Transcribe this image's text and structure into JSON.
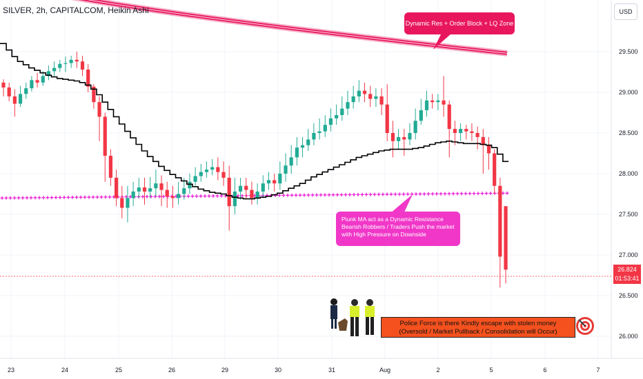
{
  "header": {
    "title": "SILVER, 2h, CAPITALCOM, Heikin Ashi",
    "currency": "USD"
  },
  "price_axis": {
    "ticks": [
      "29.500",
      "29.000",
      "28.500",
      "28.000",
      "27.500",
      "27.000",
      "26.500",
      "26.000"
    ],
    "current_price": "26.824",
    "countdown": "01:53:41"
  },
  "time_axis": {
    "ticks": [
      "23",
      "24",
      "25",
      "26",
      "29",
      "30",
      "31",
      "Aug",
      "2",
      "5",
      "6",
      "7"
    ]
  },
  "annotations": {
    "top": "Dynamic Res + Order Block + LQ Zone",
    "mid": [
      "Piunk MA act as a Dynamic Resistance",
      "Bearish Robbers / Traders Push the market",
      "with High Pressure on Downside"
    ],
    "bottom": [
      "Police Force is there Kindly escape with stolen money",
      "(Oversold / Market Pullback / Consolidation will Occur)"
    ]
  },
  "colors": {
    "up": "#22ab94",
    "down": "#f23645",
    "ma": "#000000",
    "pink_ma": "#e91ed4",
    "band": "#e91e63"
  },
  "chart_data": {
    "type": "candlestick",
    "title": "SILVER, 2h, CAPITALCOM, Heikin Ashi",
    "ylim": [
      25.7,
      29.95
    ],
    "candles": [
      {
        "o": 29.12,
        "c": 29.06,
        "h": 29.16,
        "l": 28.95
      },
      {
        "o": 29.06,
        "c": 28.95,
        "h": 29.12,
        "l": 28.89
      },
      {
        "o": 28.95,
        "c": 28.86,
        "h": 29.04,
        "l": 28.7
      },
      {
        "o": 28.86,
        "c": 28.98,
        "h": 29.08,
        "l": 28.82
      },
      {
        "o": 28.98,
        "c": 29.05,
        "h": 29.12,
        "l": 28.92
      },
      {
        "o": 29.05,
        "c": 29.15,
        "h": 29.2,
        "l": 29.01
      },
      {
        "o": 29.15,
        "c": 29.12,
        "h": 29.24,
        "l": 29.06
      },
      {
        "o": 29.12,
        "c": 29.2,
        "h": 29.26,
        "l": 29.08
      },
      {
        "o": 29.2,
        "c": 29.26,
        "h": 29.33,
        "l": 29.15
      },
      {
        "o": 29.26,
        "c": 29.3,
        "h": 29.38,
        "l": 29.2
      },
      {
        "o": 29.3,
        "c": 29.35,
        "h": 29.4,
        "l": 29.25
      },
      {
        "o": 29.35,
        "c": 29.36,
        "h": 29.44,
        "l": 29.25
      },
      {
        "o": 29.36,
        "c": 29.4,
        "h": 29.45,
        "l": 29.3
      },
      {
        "o": 29.4,
        "c": 29.38,
        "h": 29.5,
        "l": 29.3
      },
      {
        "o": 29.38,
        "c": 29.28,
        "h": 29.45,
        "l": 29.2
      },
      {
        "o": 29.28,
        "c": 29.07,
        "h": 29.35,
        "l": 29.0
      },
      {
        "o": 29.07,
        "c": 28.88,
        "h": 29.1,
        "l": 28.8
      },
      {
        "o": 28.88,
        "c": 28.7,
        "h": 28.95,
        "l": 28.4
      },
      {
        "o": 28.7,
        "c": 28.22,
        "h": 28.75,
        "l": 27.9
      },
      {
        "o": 28.22,
        "c": 27.95,
        "h": 28.3,
        "l": 27.85
      },
      {
        "o": 27.95,
        "c": 27.7,
        "h": 28.05,
        "l": 27.6
      },
      {
        "o": 27.7,
        "c": 27.58,
        "h": 27.85,
        "l": 27.45
      },
      {
        "o": 27.58,
        "c": 27.7,
        "h": 27.85,
        "l": 27.4
      },
      {
        "o": 27.7,
        "c": 27.78,
        "h": 27.9,
        "l": 27.6
      },
      {
        "o": 27.78,
        "c": 27.83,
        "h": 27.95,
        "l": 27.7
      },
      {
        "o": 27.83,
        "c": 27.78,
        "h": 27.95,
        "l": 27.62
      },
      {
        "o": 27.78,
        "c": 27.82,
        "h": 27.96,
        "l": 27.7
      },
      {
        "o": 27.82,
        "c": 27.88,
        "h": 28.05,
        "l": 27.72
      },
      {
        "o": 27.88,
        "c": 27.8,
        "h": 27.98,
        "l": 27.6
      },
      {
        "o": 27.8,
        "c": 27.72,
        "h": 27.9,
        "l": 27.58
      },
      {
        "o": 27.72,
        "c": 27.7,
        "h": 27.85,
        "l": 27.58
      },
      {
        "o": 27.7,
        "c": 27.75,
        "h": 27.9,
        "l": 27.62
      },
      {
        "o": 27.75,
        "c": 27.82,
        "h": 27.95,
        "l": 27.68
      },
      {
        "o": 27.82,
        "c": 27.9,
        "h": 28.0,
        "l": 27.75
      },
      {
        "o": 27.9,
        "c": 27.97,
        "h": 28.08,
        "l": 27.85
      },
      {
        "o": 27.97,
        "c": 28.02,
        "h": 28.12,
        "l": 27.9
      },
      {
        "o": 28.02,
        "c": 28.05,
        "h": 28.15,
        "l": 27.95
      },
      {
        "o": 28.05,
        "c": 28.08,
        "h": 28.18,
        "l": 27.98
      },
      {
        "o": 28.08,
        "c": 28.02,
        "h": 28.2,
        "l": 27.92
      },
      {
        "o": 28.02,
        "c": 27.95,
        "h": 28.15,
        "l": 27.85
      },
      {
        "o": 27.95,
        "c": 27.6,
        "h": 28.1,
        "l": 27.3
      },
      {
        "o": 27.6,
        "c": 27.78,
        "h": 27.95,
        "l": 27.5
      },
      {
        "o": 27.78,
        "c": 27.85,
        "h": 27.95,
        "l": 27.68
      },
      {
        "o": 27.85,
        "c": 27.8,
        "h": 27.95,
        "l": 27.7
      },
      {
        "o": 27.8,
        "c": 27.7,
        "h": 27.9,
        "l": 27.62
      },
      {
        "o": 27.7,
        "c": 27.78,
        "h": 27.88,
        "l": 27.62
      },
      {
        "o": 27.78,
        "c": 27.88,
        "h": 27.98,
        "l": 27.7
      },
      {
        "o": 27.88,
        "c": 27.92,
        "h": 28.02,
        "l": 27.8
      },
      {
        "o": 27.92,
        "c": 27.88,
        "h": 28.0,
        "l": 27.78
      },
      {
        "o": 27.88,
        "c": 28.0,
        "h": 28.15,
        "l": 27.8
      },
      {
        "o": 28.0,
        "c": 28.1,
        "h": 28.25,
        "l": 27.9
      },
      {
        "o": 28.1,
        "c": 28.2,
        "h": 28.35,
        "l": 28.0
      },
      {
        "o": 28.2,
        "c": 28.32,
        "h": 28.45,
        "l": 28.1
      },
      {
        "o": 28.32,
        "c": 28.35,
        "h": 28.45,
        "l": 28.2
      },
      {
        "o": 28.35,
        "c": 28.42,
        "h": 28.55,
        "l": 28.28
      },
      {
        "o": 28.42,
        "c": 28.5,
        "h": 28.62,
        "l": 28.35
      },
      {
        "o": 28.5,
        "c": 28.52,
        "h": 28.68,
        "l": 28.42
      },
      {
        "o": 28.52,
        "c": 28.6,
        "h": 28.72,
        "l": 28.45
      },
      {
        "o": 28.6,
        "c": 28.68,
        "h": 28.8,
        "l": 28.52
      },
      {
        "o": 28.68,
        "c": 28.72,
        "h": 28.85,
        "l": 28.6
      },
      {
        "o": 28.72,
        "c": 28.8,
        "h": 28.95,
        "l": 28.65
      },
      {
        "o": 28.8,
        "c": 28.88,
        "h": 29.02,
        "l": 28.72
      },
      {
        "o": 28.88,
        "c": 28.95,
        "h": 29.08,
        "l": 28.8
      },
      {
        "o": 28.95,
        "c": 29.02,
        "h": 29.15,
        "l": 28.88
      },
      {
        "o": 29.02,
        "c": 28.98,
        "h": 29.12,
        "l": 28.88
      },
      {
        "o": 28.98,
        "c": 28.92,
        "h": 29.08,
        "l": 28.82
      },
      {
        "o": 28.92,
        "c": 28.95,
        "h": 29.05,
        "l": 28.82
      },
      {
        "o": 28.95,
        "c": 28.85,
        "h": 29.05,
        "l": 28.72
      },
      {
        "o": 28.85,
        "c": 28.5,
        "h": 29.1,
        "l": 28.4
      },
      {
        "o": 28.5,
        "c": 28.4,
        "h": 28.65,
        "l": 28.2
      },
      {
        "o": 28.4,
        "c": 28.45,
        "h": 28.55,
        "l": 28.3
      },
      {
        "o": 28.45,
        "c": 28.42,
        "h": 28.55,
        "l": 28.22
      },
      {
        "o": 28.42,
        "c": 28.5,
        "h": 28.62,
        "l": 28.35
      },
      {
        "o": 28.5,
        "c": 28.65,
        "h": 28.8,
        "l": 28.42
      },
      {
        "o": 28.65,
        "c": 28.78,
        "h": 28.92,
        "l": 28.6
      },
      {
        "o": 28.78,
        "c": 28.9,
        "h": 29.02,
        "l": 28.7
      },
      {
        "o": 28.9,
        "c": 28.88,
        "h": 28.98,
        "l": 28.8
      },
      {
        "o": 28.88,
        "c": 28.9,
        "h": 28.98,
        "l": 28.78
      },
      {
        "o": 28.9,
        "c": 28.85,
        "h": 29.2,
        "l": 28.7
      },
      {
        "o": 28.85,
        "c": 28.55,
        "h": 28.9,
        "l": 28.2
      },
      {
        "o": 28.55,
        "c": 28.5,
        "h": 28.65,
        "l": 28.35
      },
      {
        "o": 28.5,
        "c": 28.55,
        "h": 28.62,
        "l": 28.4
      },
      {
        "o": 28.55,
        "c": 28.52,
        "h": 28.6,
        "l": 28.42
      },
      {
        "o": 28.52,
        "c": 28.5,
        "h": 28.62,
        "l": 28.4
      },
      {
        "o": 28.5,
        "c": 28.45,
        "h": 28.58,
        "l": 28.3
      },
      {
        "o": 28.45,
        "c": 28.35,
        "h": 28.55,
        "l": 28.0
      },
      {
        "o": 28.35,
        "c": 28.25,
        "h": 28.45,
        "l": 28.05
      },
      {
        "o": 28.25,
        "c": 27.85,
        "h": 28.3,
        "l": 27.75
      },
      {
        "o": 27.85,
        "c": 26.98,
        "h": 27.95,
        "l": 26.6
      },
      {
        "o": 27.6,
        "c": 26.82,
        "h": 27.6,
        "l": 26.65
      }
    ],
    "ma_black": [
      29.6,
      29.52,
      29.44,
      29.38,
      29.34,
      29.3,
      29.27,
      29.24,
      29.21,
      29.19,
      29.17,
      29.16,
      29.15,
      29.14,
      29.12,
      29.09,
      29.04,
      28.97,
      28.88,
      28.79,
      28.7,
      28.61,
      28.52,
      28.44,
      28.36,
      28.28,
      28.21,
      28.15,
      28.09,
      28.04,
      27.99,
      27.95,
      27.91,
      27.87,
      27.84,
      27.81,
      27.79,
      27.77,
      27.76,
      27.75,
      27.73,
      27.71,
      27.7,
      27.69,
      27.69,
      27.7,
      27.71,
      27.72,
      27.74,
      27.76,
      27.79,
      27.82,
      27.85,
      27.88,
      27.92,
      27.96,
      27.99,
      28.02,
      28.05,
      28.08,
      28.11,
      28.14,
      28.17,
      28.2,
      28.22,
      28.24,
      28.26,
      28.28,
      28.29,
      28.3,
      28.3,
      28.3,
      28.3,
      28.31,
      28.32,
      28.34,
      28.36,
      28.38,
      28.39,
      28.4,
      28.39,
      28.38,
      28.37,
      28.37,
      28.37,
      28.36,
      28.35,
      28.32,
      28.24,
      28.15
    ],
    "ma_pink": 27.7,
    "ma_pink_end": 27.76,
    "band_start": 30.38,
    "band_end": 29.48
  }
}
